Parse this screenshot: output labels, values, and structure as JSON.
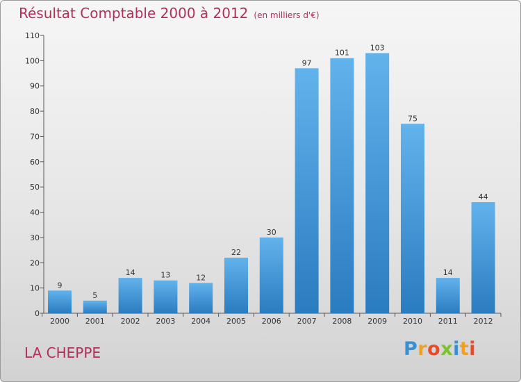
{
  "header": {
    "title": "Résultat Comptable 2000 à 2012",
    "subtitle": "(en milliers d'€)"
  },
  "footer": {
    "commune": "LA CHEPPE",
    "brand_letters": [
      "P",
      "r",
      "o",
      "x",
      "i",
      "t",
      "i"
    ],
    "brand_colors": [
      "#3a8fd0",
      "#f0a020",
      "#e84a2a",
      "#7cc230",
      "#3a8fd0",
      "#f0a020",
      "#e84a2a"
    ]
  },
  "colors": {
    "title": "#b03058",
    "bar_light": "#62b2ec",
    "bar_dark": "#2a7cc0"
  },
  "chart_data": {
    "type": "bar",
    "title": "Résultat Comptable 2000 à 2012",
    "subtitle": "(en milliers d'€)",
    "categories": [
      "2000",
      "2001",
      "2002",
      "2003",
      "2004",
      "2005",
      "2006",
      "2007",
      "2008",
      "2009",
      "2010",
      "2011",
      "2012"
    ],
    "values": [
      9,
      5,
      14,
      13,
      12,
      22,
      30,
      97,
      101,
      103,
      75,
      14,
      44
    ],
    "ylim": [
      0,
      110
    ],
    "yticks": [
      0,
      10,
      20,
      30,
      40,
      50,
      60,
      70,
      80,
      90,
      100,
      110
    ],
    "data_labels": true,
    "grid": false
  }
}
